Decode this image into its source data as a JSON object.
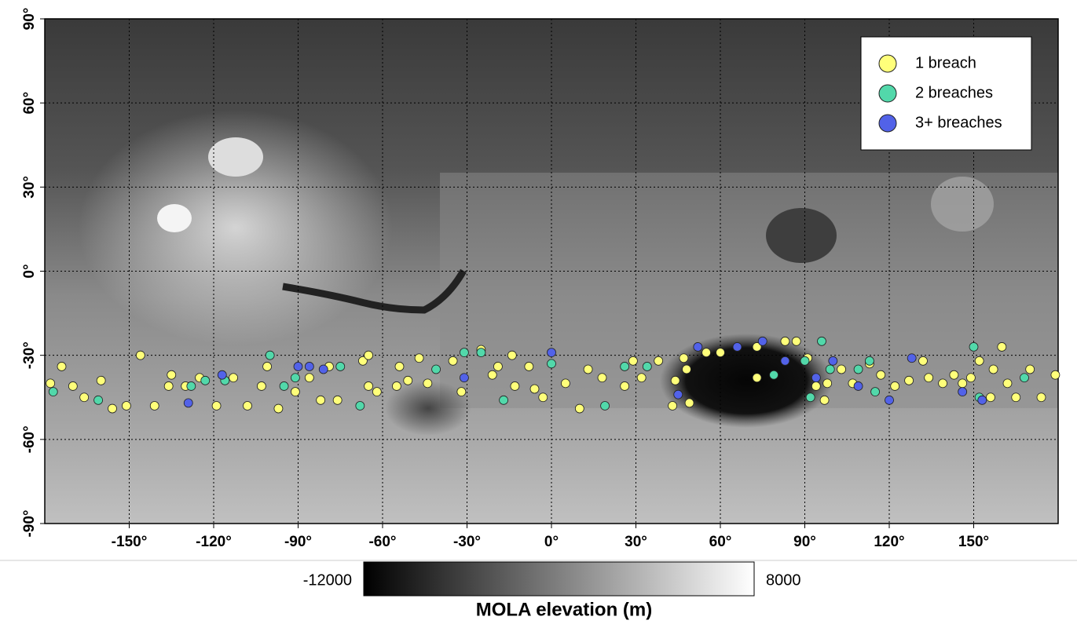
{
  "chart_data": {
    "type": "scatter",
    "xlim": [
      -180,
      180
    ],
    "ylim": [
      -90,
      90
    ],
    "xticks": [
      {
        "value": -150,
        "label": "-150°"
      },
      {
        "value": -120,
        "label": "-120°"
      },
      {
        "value": -90,
        "label": "-90°"
      },
      {
        "value": -60,
        "label": "-60°"
      },
      {
        "value": -30,
        "label": "-30°"
      },
      {
        "value": 0,
        "label": "0°"
      },
      {
        "value": 30,
        "label": "30°"
      },
      {
        "value": 60,
        "label": "60°"
      },
      {
        "value": 90,
        "label": "90°"
      },
      {
        "value": 120,
        "label": "120°"
      },
      {
        "value": 150,
        "label": "150°"
      }
    ],
    "yticks": [
      {
        "value": -90,
        "label": "-90°"
      },
      {
        "value": -60,
        "label": "-60°"
      },
      {
        "value": -30,
        "label": "-30°"
      },
      {
        "value": 0,
        "label": "0°"
      },
      {
        "value": 30,
        "label": "30°"
      },
      {
        "value": 60,
        "label": "60°"
      },
      {
        "value": 90,
        "label": "90°"
      }
    ],
    "grid": true,
    "legend": "upper right",
    "series": [
      {
        "name": "1 breach",
        "color": "#ffff7a",
        "x": [
          -178,
          -174,
          -170,
          -166,
          -160,
          -156,
          -151,
          -146,
          -141,
          -136,
          -135,
          -130,
          -125,
          -119,
          -113,
          -108,
          -101,
          -103,
          -97,
          -91,
          -86,
          -82,
          -79,
          -76,
          -67,
          -65,
          -65,
          -62,
          -54,
          -55,
          -51,
          -47,
          -44,
          -35,
          -32,
          -25,
          -21,
          -19,
          -14,
          -13,
          -8,
          -6,
          -3,
          5,
          10,
          13,
          18,
          26,
          29,
          32,
          38,
          43,
          44,
          47,
          48,
          49,
          55,
          60,
          73,
          73,
          83,
          87,
          90,
          91,
          94,
          97,
          98,
          103,
          107,
          113,
          117,
          122,
          127,
          132,
          134,
          139,
          143,
          146,
          149,
          152,
          156,
          157,
          160,
          162,
          165,
          170,
          174,
          179
        ],
        "y": [
          -40,
          -34,
          -41,
          -45,
          -39,
          -49,
          -48,
          -30,
          -48,
          -41,
          -37,
          -41,
          -38,
          -48,
          -38,
          -48,
          -34,
          -41,
          -49,
          -43,
          -38,
          -46,
          -34,
          -46,
          -32,
          -30,
          -41,
          -43,
          -34,
          -41,
          -39,
          -31,
          -40,
          -32,
          -43,
          -28,
          -37,
          -34,
          -30,
          -41,
          -34,
          -42,
          -45,
          -40,
          -49,
          -35,
          -38,
          -41,
          -32,
          -38,
          -32,
          -48,
          -39,
          -31,
          -35,
          -47,
          -29,
          -29,
          -38,
          -27,
          -25,
          -25,
          -32,
          -31,
          -41,
          -46,
          -40,
          -35,
          -40,
          -33,
          -37,
          -41,
          -39,
          -32,
          -38,
          -40,
          -37,
          -40,
          -38,
          -32,
          -45,
          -35,
          -27,
          -40,
          -45,
          -35,
          -45,
          -37
        ]
      },
      {
        "name": "2 breaches",
        "color": "#52d8aa",
        "x": [
          -177,
          -161,
          -128,
          -123,
          -116,
          -100,
          -95,
          -91,
          -75,
          -68,
          -41,
          -31,
          -25,
          -17,
          0,
          19,
          26,
          34,
          79,
          90,
          92,
          96,
          99,
          109,
          113,
          115,
          150,
          152,
          168
        ],
        "y": [
          -43,
          -46,
          -41,
          -39,
          -39,
          -30,
          -41,
          -38,
          -34,
          -48,
          -35,
          -29,
          -29,
          -46,
          -33,
          -48,
          -34,
          -34,
          -37,
          -32,
          -45,
          -25,
          -35,
          -35,
          -32,
          -43,
          -27,
          -45,
          -38
        ]
      },
      {
        "name": "3+ breaches",
        "color": "#5262e8",
        "x": [
          -129,
          -117,
          -90,
          -86,
          -81,
          -31,
          0,
          45,
          52,
          66,
          75,
          83,
          94,
          100,
          109,
          120,
          128,
          146,
          153
        ],
        "y": [
          -47,
          -37,
          -34,
          -34,
          -35,
          -38,
          -29,
          -44,
          -27,
          -27,
          -25,
          -32,
          -38,
          -32,
          -41,
          -46,
          -31,
          -43,
          -46
        ]
      }
    ],
    "colorbar": {
      "range": [
        -12000,
        8000
      ],
      "label": "MOLA elevation (m)"
    }
  }
}
